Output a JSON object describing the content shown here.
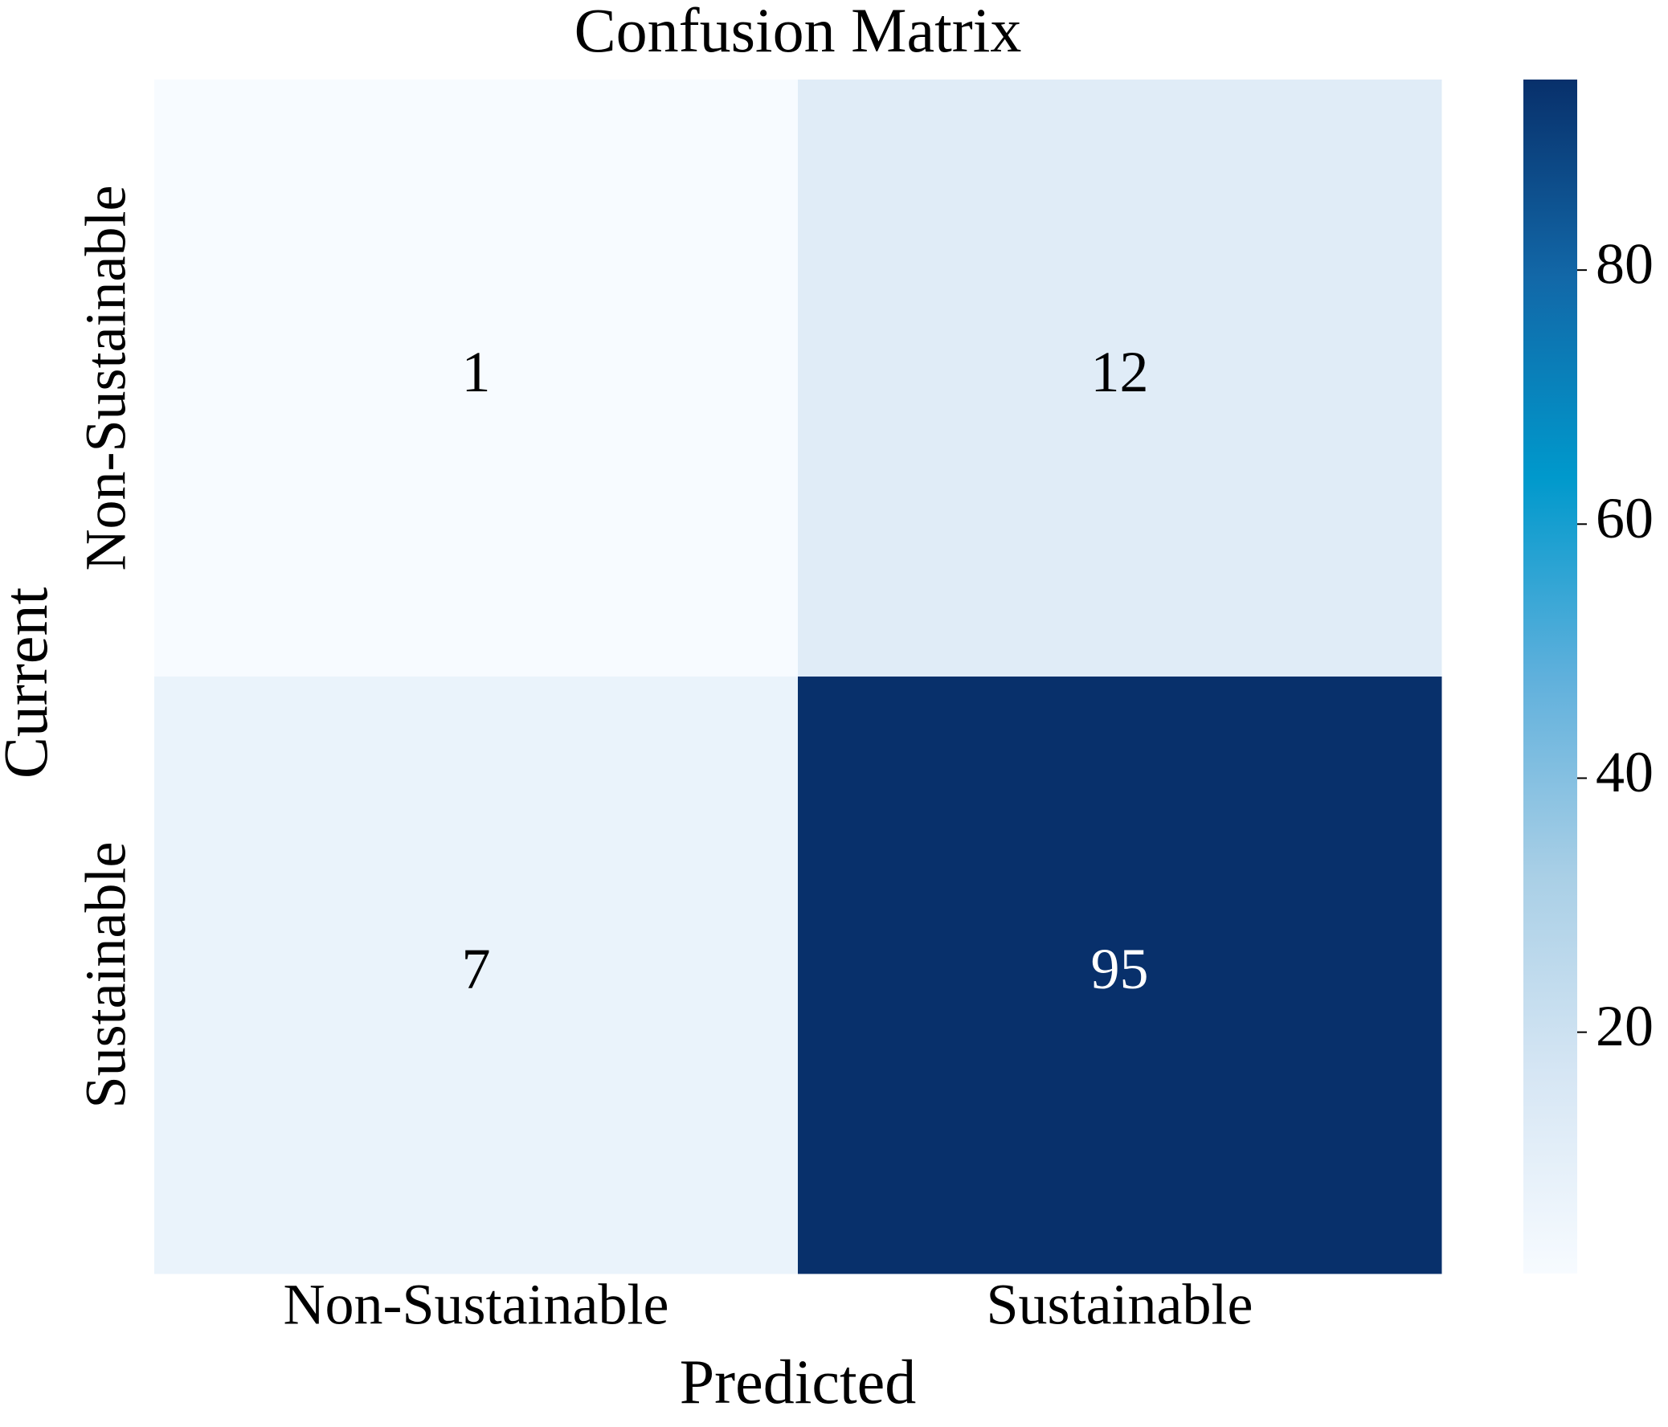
{
  "chart_data": {
    "type": "heatmap",
    "title": "Confusion Matrix",
    "x_label": "Predicted",
    "y_label": "Current",
    "x_categories": [
      "Non-Sustainable",
      "Sustainable"
    ],
    "y_categories": [
      "Non-Sustainable",
      "Sustainable"
    ],
    "values": [
      [
        1,
        12
      ],
      [
        7,
        95
      ]
    ],
    "colormap": [
      "#f7fbff",
      "#d6e6f4",
      "#a9cfe6",
      "#5fb0dc",
      "#0099cc",
      "#1268a8",
      "#08306b"
    ],
    "clim": [
      1,
      95
    ],
    "cticks": [
      20,
      40,
      60,
      80
    ]
  }
}
